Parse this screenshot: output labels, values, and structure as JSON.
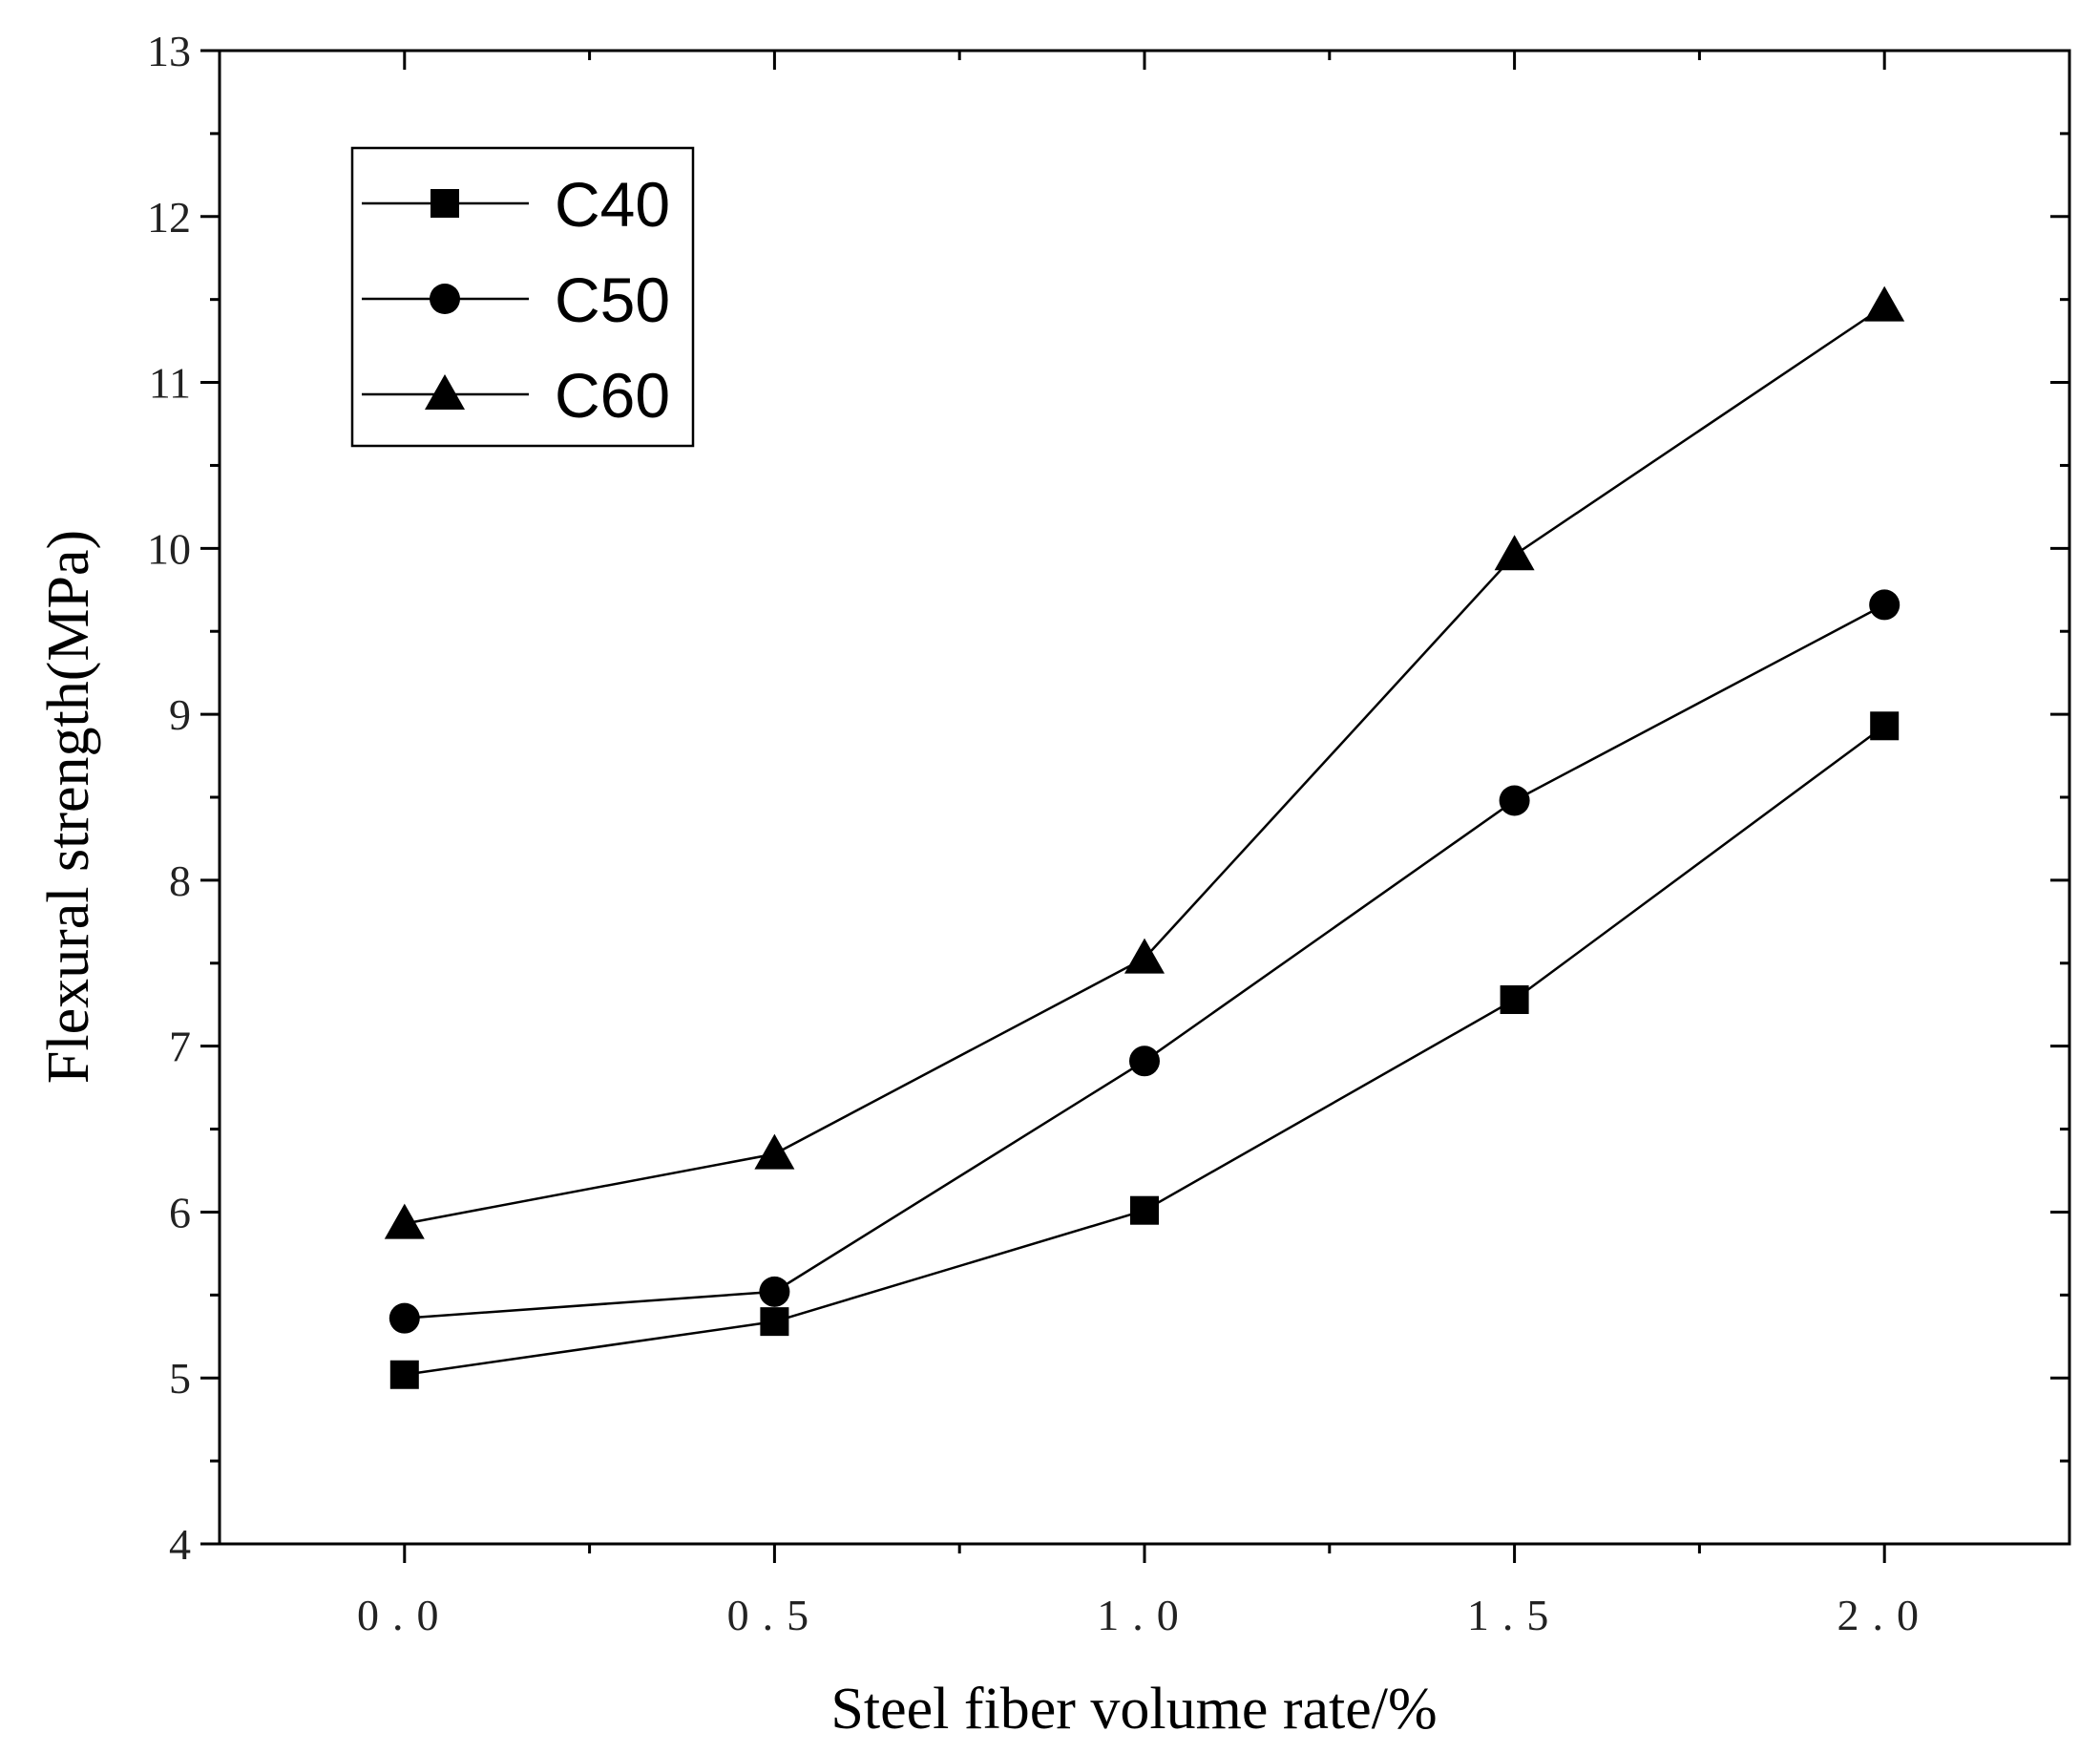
{
  "chart_data": {
    "type": "line",
    "title": "",
    "xlabel": "Steel fiber volume rate/%",
    "ylabel": "Flexural  strength(MPa)",
    "x": [
      0.0,
      0.5,
      1.0,
      1.5,
      2.0
    ],
    "xlim": [
      -0.25,
      2.25
    ],
    "ylim": [
      4,
      13
    ],
    "x_ticks": [
      0.0,
      0.5,
      1.0,
      1.5,
      2.0
    ],
    "x_tick_labels": [
      "0.0",
      "0.5",
      "1.0",
      "1.5",
      "2.0"
    ],
    "y_ticks": [
      4,
      5,
      6,
      7,
      8,
      9,
      10,
      11,
      12,
      13
    ],
    "y_tick_labels": [
      "4",
      "5",
      "6",
      "7",
      "8",
      "9",
      "10",
      "11",
      "12",
      "13"
    ],
    "grid": false,
    "legend_position": "top-left",
    "series": [
      {
        "name": "C40",
        "marker": "square",
        "values": [
          5.02,
          5.34,
          6.01,
          7.28,
          8.93
        ]
      },
      {
        "name": "C50",
        "marker": "circle",
        "values": [
          5.36,
          5.52,
          6.91,
          8.48,
          9.66
        ]
      },
      {
        "name": "C60",
        "marker": "triangle",
        "values": [
          5.93,
          6.35,
          7.53,
          9.96,
          11.46
        ]
      }
    ],
    "line_color": "#000000"
  }
}
